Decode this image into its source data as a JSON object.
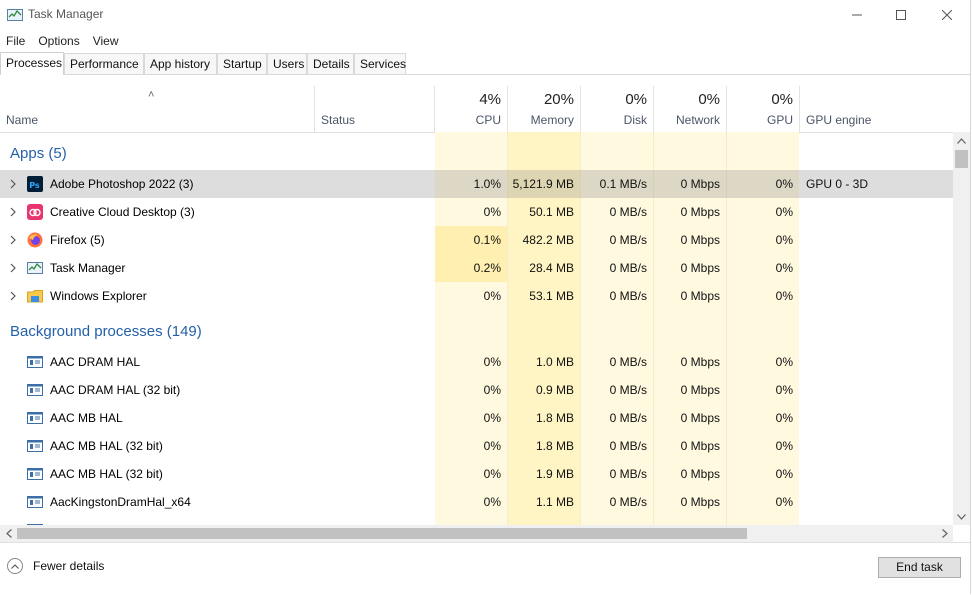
{
  "window": {
    "title": "Task Manager"
  },
  "menu": [
    "File",
    "Options",
    "View"
  ],
  "tabs": [
    "Processes",
    "Performance",
    "App history",
    "Startup",
    "Users",
    "Details",
    "Services"
  ],
  "columns": {
    "name": "Name",
    "status": "Status",
    "cpu": {
      "label": "CPU",
      "pct": "4%"
    },
    "memory": {
      "label": "Memory",
      "pct": "20%"
    },
    "disk": {
      "label": "Disk",
      "pct": "0%"
    },
    "network": {
      "label": "Network",
      "pct": "0%"
    },
    "gpu": {
      "label": "GPU",
      "pct": "0%"
    },
    "gpu_engine": "GPU engine"
  },
  "groups": {
    "apps": "Apps (5)",
    "background": "Background processes (149)"
  },
  "apps": [
    {
      "name": "Adobe Photoshop 2022 (3)",
      "icon": "photoshop-icon",
      "cpu": "1.0%",
      "memory": "5,121.9 MB",
      "disk": "0.1 MB/s",
      "network": "0 Mbps",
      "gpu": "0%",
      "gpu_engine": "GPU 0 - 3D"
    },
    {
      "name": "Creative Cloud Desktop (3)",
      "icon": "creative-cloud-icon",
      "cpu": "0%",
      "memory": "50.1 MB",
      "disk": "0 MB/s",
      "network": "0 Mbps",
      "gpu": "0%",
      "gpu_engine": ""
    },
    {
      "name": "Firefox (5)",
      "icon": "firefox-icon",
      "cpu": "0.1%",
      "memory": "482.2 MB",
      "disk": "0 MB/s",
      "network": "0 Mbps",
      "gpu": "0%",
      "gpu_engine": ""
    },
    {
      "name": "Task Manager",
      "icon": "task-manager-icon",
      "cpu": "0.2%",
      "memory": "28.4 MB",
      "disk": "0 MB/s",
      "network": "0 Mbps",
      "gpu": "0%",
      "gpu_engine": ""
    },
    {
      "name": "Windows Explorer",
      "icon": "folder-icon",
      "cpu": "0%",
      "memory": "53.1 MB",
      "disk": "0 MB/s",
      "network": "0 Mbps",
      "gpu": "0%",
      "gpu_engine": ""
    }
  ],
  "background": [
    {
      "name": "AAC DRAM HAL",
      "icon": "process-icon",
      "cpu": "0%",
      "memory": "1.0 MB",
      "disk": "0 MB/s",
      "network": "0 Mbps",
      "gpu": "0%"
    },
    {
      "name": "AAC DRAM HAL (32 bit)",
      "icon": "process-icon",
      "cpu": "0%",
      "memory": "0.9 MB",
      "disk": "0 MB/s",
      "network": "0 Mbps",
      "gpu": "0%"
    },
    {
      "name": "AAC MB HAL",
      "icon": "process-icon",
      "cpu": "0%",
      "memory": "1.8 MB",
      "disk": "0 MB/s",
      "network": "0 Mbps",
      "gpu": "0%"
    },
    {
      "name": "AAC MB HAL (32 bit)",
      "icon": "process-icon",
      "cpu": "0%",
      "memory": "1.8 MB",
      "disk": "0 MB/s",
      "network": "0 Mbps",
      "gpu": "0%"
    },
    {
      "name": "AAC MB HAL (32 bit)",
      "icon": "process-icon",
      "cpu": "0%",
      "memory": "1.9 MB",
      "disk": "0 MB/s",
      "network": "0 Mbps",
      "gpu": "0%"
    },
    {
      "name": "AacKingstonDramHal_x64",
      "icon": "process-icon",
      "cpu": "0%",
      "memory": "1.1 MB",
      "disk": "0 MB/s",
      "network": "0 Mbps",
      "gpu": "0%"
    }
  ],
  "footer": {
    "fewer_details": "Fewer details",
    "end_task": "End task"
  },
  "colors": {
    "heat_light": "#fff9e0",
    "heat_medium": "#fff4c4",
    "heat_strong": "#ffefb0",
    "group_blue": "#2560a8"
  }
}
